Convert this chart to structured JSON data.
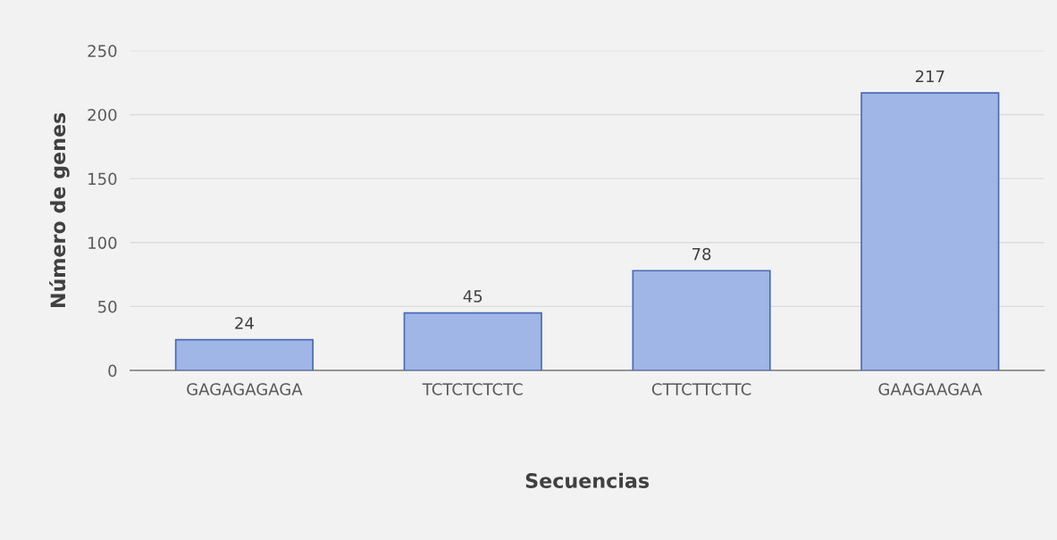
{
  "chart_data": {
    "type": "bar",
    "xlabel": "Secuencias",
    "ylabel": "Número de genes",
    "categories": [
      "GAGAGAGAGA",
      "TCTCTCTCTC",
      "CTTCTTCTTC",
      "GAAGAAGAA"
    ],
    "values": [
      24,
      45,
      78,
      217
    ],
    "color": "#9fb6e6",
    "ylim": [
      0,
      250
    ],
    "yticks": [
      0,
      50,
      100,
      150,
      200,
      250
    ],
    "grid": "y",
    "data_labels": true
  }
}
